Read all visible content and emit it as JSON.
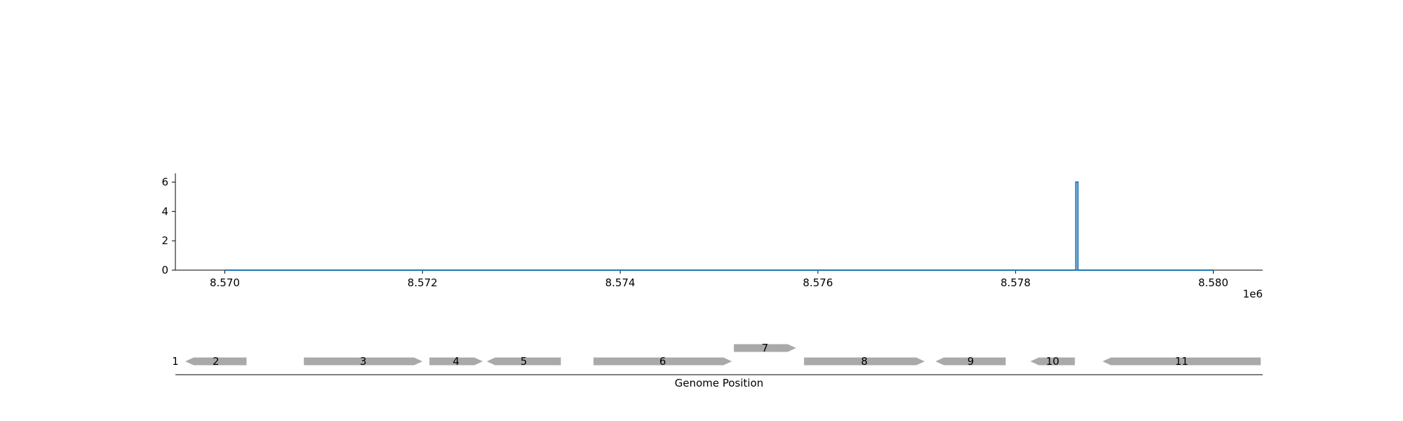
{
  "chart_data": {
    "type": "line",
    "x_scale_label": "1e6",
    "xlim": [
      8569500,
      8580500
    ],
    "ylim": [
      0,
      6.6
    ],
    "x_ticks": [
      8570000,
      8572000,
      8574000,
      8576000,
      8578000,
      8580000
    ],
    "x_tick_labels": [
      "8.570",
      "8.572",
      "8.574",
      "8.576",
      "8.578",
      "8.580"
    ],
    "y_ticks": [
      0,
      2,
      4,
      6
    ],
    "y_tick_labels": [
      "0",
      "2",
      "4",
      "6"
    ],
    "series": [
      {
        "color": "#1f77b4",
        "x": [
          8570000,
          8578610,
          8578610,
          8578630,
          8578630,
          8580000
        ],
        "y": [
          0,
          0,
          6,
          6,
          0,
          0
        ]
      }
    ],
    "gene_track": {
      "xlabel": "Genome Position",
      "genes": [
        {
          "label": "1",
          "start": 8569500,
          "end": 8569500,
          "strand": "+",
          "row": 0
        },
        {
          "label": "2",
          "start": 8569600,
          "end": 8570220,
          "strand": "-",
          "row": 0
        },
        {
          "label": "3",
          "start": 8570800,
          "end": 8572000,
          "strand": "+",
          "row": 0
        },
        {
          "label": "4",
          "start": 8572070,
          "end": 8572610,
          "strand": "+",
          "row": 0
        },
        {
          "label": "5",
          "start": 8572650,
          "end": 8573400,
          "strand": "-",
          "row": 0
        },
        {
          "label": "6",
          "start": 8573730,
          "end": 8575130,
          "strand": "+",
          "row": 0
        },
        {
          "label": "7",
          "start": 8575150,
          "end": 8575780,
          "strand": "+",
          "row": 1
        },
        {
          "label": "8",
          "start": 8575860,
          "end": 8577080,
          "strand": "+",
          "row": 0
        },
        {
          "label": "9",
          "start": 8577190,
          "end": 8577900,
          "strand": "-",
          "row": 0
        },
        {
          "label": "10",
          "start": 8578150,
          "end": 8578600,
          "strand": "-",
          "row": 0
        },
        {
          "label": "11",
          "start": 8578880,
          "end": 8580480,
          "strand": "-",
          "row": 0
        }
      ],
      "color": "#a9a9a9"
    }
  }
}
